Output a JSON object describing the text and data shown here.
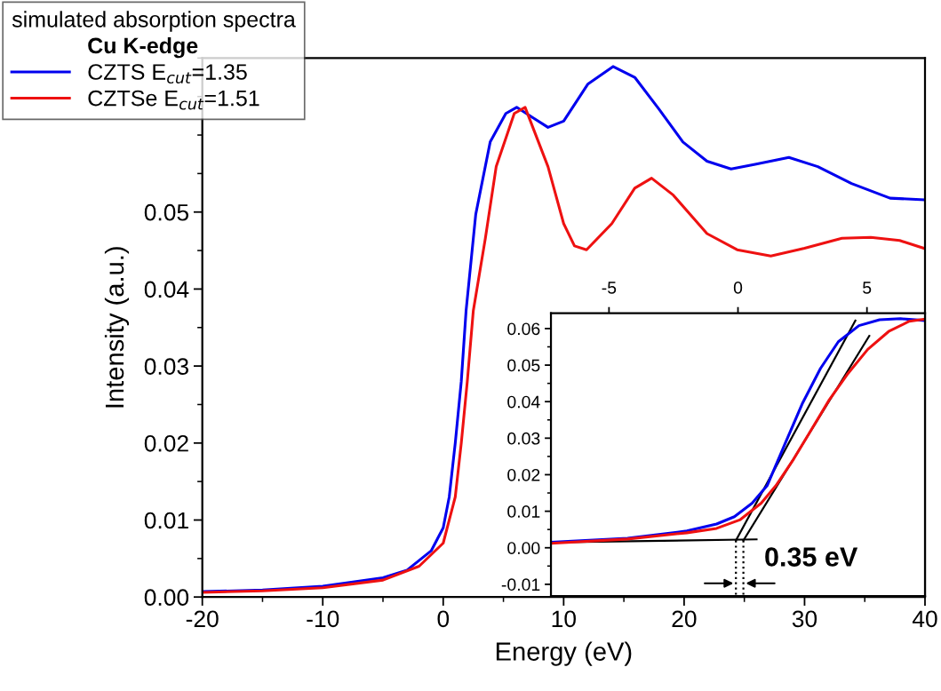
{
  "chart_data": [
    {
      "type": "line",
      "xlabel": "Energy (eV)",
      "ylabel": "Intensity (a.u.)",
      "legend_title": "simulated absorption spectra",
      "subtitle": "Cu K-edge",
      "legend": "top left",
      "xlim": [
        -20,
        40
      ],
      "xticks": [
        -20,
        -10,
        0,
        10,
        20,
        30,
        40
      ],
      "ylim": [
        0,
        0.07
      ],
      "yticks": [
        {
          "value": 0,
          "label": "0.00"
        },
        {
          "value": 0.01,
          "label": "0.01"
        },
        {
          "value": 0.02,
          "label": "0.02"
        },
        {
          "value": 0.03,
          "label": "0.03"
        },
        {
          "value": 0.04,
          "label": "0.04"
        },
        {
          "value": 0.05,
          "label": "0.05"
        }
      ],
      "series": [
        {
          "name": "CZTS E$_{cut}$=1.35",
          "color": "#0000ee",
          "x": [
            -20,
            -15,
            -10,
            -5,
            -3,
            -1,
            0,
            0.5,
            1,
            1.5,
            1.9,
            2.7,
            3.9,
            5.2,
            6.1,
            7.5,
            8.7,
            10.0,
            12.0,
            14.1,
            15.9,
            17.9,
            19.9,
            21.9,
            23.9,
            25.9,
            28.7,
            31.1,
            33.9,
            37.1,
            39.9
          ],
          "values": [
            0.0007,
            0.0009,
            0.0014,
            0.0025,
            0.0035,
            0.006,
            0.009,
            0.013,
            0.02,
            0.028,
            0.0372,
            0.0497,
            0.0591,
            0.0628,
            0.0636,
            0.0622,
            0.061,
            0.0618,
            0.0666,
            0.0689,
            0.0675,
            0.0634,
            0.0591,
            0.0566,
            0.0556,
            0.0562,
            0.0571,
            0.0559,
            0.0537,
            0.0518,
            0.0516
          ]
        },
        {
          "name": "CZTSe E$_{cut}$=1.51",
          "color": "#ee1111",
          "x": [
            -20,
            -15,
            -10,
            -5,
            -2,
            0,
            1,
            1.5,
            2,
            2.5,
            3.5,
            4.4,
            5.9,
            6.8,
            8.7,
            10.0,
            10.9,
            11.9,
            14.0,
            15.9,
            17.3,
            19.1,
            21.9,
            24.4,
            27.2,
            30.0,
            33.1,
            35.5,
            37.9,
            39.9
          ],
          "values": [
            0.0006,
            0.0008,
            0.0012,
            0.0022,
            0.004,
            0.007,
            0.013,
            0.02,
            0.028,
            0.0372,
            0.0466,
            0.0559,
            0.0628,
            0.0636,
            0.0559,
            0.0485,
            0.0456,
            0.0451,
            0.0485,
            0.0531,
            0.0544,
            0.0522,
            0.0472,
            0.0451,
            0.0443,
            0.0453,
            0.0466,
            0.0467,
            0.0463,
            0.0453
          ]
        }
      ]
    },
    {
      "type": "line",
      "annotations": [
        "0.35 eV"
      ],
      "xlim": [
        -7.25,
        7.25
      ],
      "xticks": [
        -5,
        0,
        5
      ],
      "ylim": [
        -0.0132,
        0.0642
      ],
      "yticks": [
        {
          "value": -0.01,
          "label": "-0.01"
        },
        {
          "value": 0,
          "label": "0.00"
        },
        {
          "value": 0.01,
          "label": "0.01"
        },
        {
          "value": 0.02,
          "label": "0.02"
        },
        {
          "value": 0.03,
          "label": "0.03"
        },
        {
          "value": 0.04,
          "label": "0.04"
        },
        {
          "value": 0.05,
          "label": "0.05"
        },
        {
          "value": 0.06,
          "label": "0.06"
        }
      ],
      "series": [
        {
          "color": "#0000ee",
          "x": [
            -7.25,
            -4.28,
            -1.98,
            -0.83,
            -0.14,
            0.55,
            1.13,
            1.82,
            2.51,
            3.2,
            3.89,
            4.69,
            5.49,
            6.3,
            7.25
          ],
          "values": [
            0.0015,
            0.0026,
            0.0046,
            0.0065,
            0.0085,
            0.0122,
            0.017,
            0.0284,
            0.0397,
            0.0491,
            0.0564,
            0.0608,
            0.0624,
            0.0627,
            0.0622
          ]
        },
        {
          "color": "#ee1111",
          "x": [
            -7.25,
            -4.28,
            -1.98,
            -0.83,
            0.09,
            0.9,
            1.47,
            2.16,
            2.85,
            3.54,
            4.23,
            5.03,
            5.84,
            6.64,
            7.25
          ],
          "values": [
            0.0012,
            0.0024,
            0.0041,
            0.0053,
            0.0077,
            0.0122,
            0.017,
            0.0243,
            0.0324,
            0.0405,
            0.0474,
            0.0543,
            0.0592,
            0.062,
            0.0626
          ]
        },
        {
          "color": "#000000",
          "x": [
            -0.08,
            4.55
          ],
          "values": [
            0.002,
            0.0622
          ]
        },
        {
          "color": "#000000",
          "x": [
            0.21,
            5.09
          ],
          "values": [
            0.002,
            0.058
          ]
        },
        {
          "color": "#000000",
          "x": [
            -7.25,
            0.72
          ],
          "values": [
            0.0015,
            0.0023
          ]
        },
        {
          "color": "#000000",
          "line_style": "dotted",
          "x": [
            -0.08,
            -0.08
          ],
          "values": [
            0.002,
            -0.0132
          ]
        },
        {
          "color": "#000000",
          "line_style": "dotted",
          "x": [
            0.21,
            0.21
          ],
          "values": [
            0.002,
            -0.0132
          ]
        }
      ]
    }
  ]
}
